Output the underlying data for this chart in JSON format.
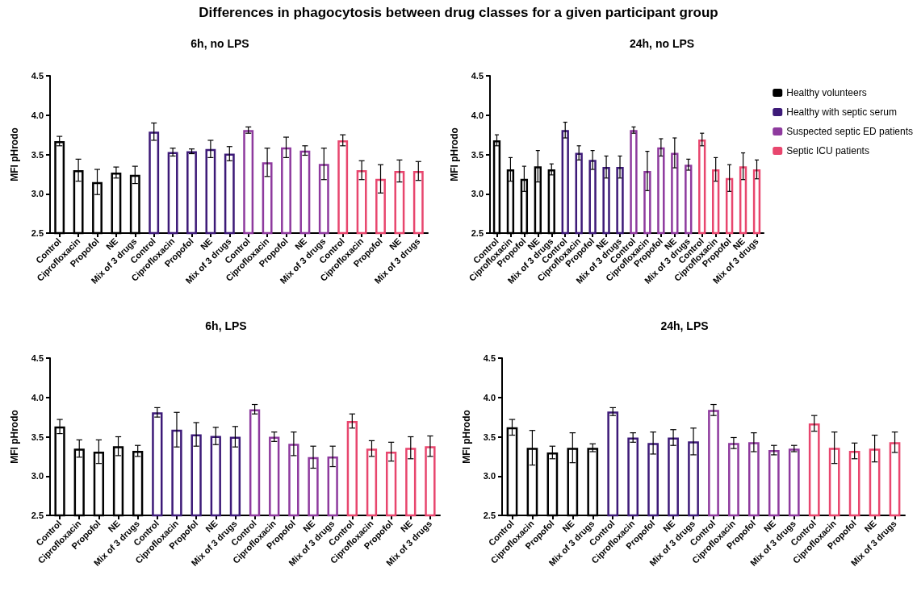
{
  "chart_data": [
    {
      "type": "bar",
      "title": "Differences in phagocytosis between drug classes for a given participant group",
      "subtitle": "6h, no LPS",
      "ylabel": "MFI pHrodo",
      "legend": false,
      "grid": false,
      "categories": [
        "Control",
        "Ciprofloxacin",
        "Propofol",
        "NE",
        "Mix of 3 drugs",
        "Control",
        "Ciprofloxacin",
        "Propofol",
        "NE",
        "Mix of 3 drugs",
        "Control",
        "Ciprofloxacin",
        "Propofol",
        "NE",
        "Mix of 3 drugs",
        "Control",
        "Ciprofloxacin",
        "Propofol",
        "NE",
        "Mix of 3 drugs"
      ],
      "ylim": [
        2.5,
        4.5
      ],
      "yticks": [
        {
          "value": 2.5,
          "label": "2.5"
        },
        {
          "value": 3,
          "label": "3.0"
        },
        {
          "value": 3.5,
          "label": "3.5"
        },
        {
          "value": 4,
          "label": "4.0"
        },
        {
          "value": 4.5,
          "label": "4.5"
        }
      ],
      "series": [
        {
          "color": "#000000",
          "values": [
            3.67,
            3.3,
            3.15,
            3.27,
            3.24,
            null,
            null,
            null,
            null,
            null,
            null,
            null,
            null,
            null,
            null,
            null,
            null,
            null,
            null,
            null
          ],
          "errors": [
            0.06,
            0.14,
            0.16,
            0.07,
            0.11,
            null,
            null,
            null,
            null,
            null,
            null,
            null,
            null,
            null,
            null,
            null,
            null,
            null,
            null,
            null
          ]
        },
        {
          "color": "#3d1a78",
          "values": [
            null,
            null,
            null,
            null,
            null,
            3.79,
            3.53,
            3.54,
            3.57,
            3.51,
            null,
            null,
            null,
            null,
            null,
            null,
            null,
            null,
            null,
            null
          ],
          "errors": [
            null,
            null,
            null,
            null,
            null,
            0.11,
            0.05,
            0.03,
            0.11,
            0.09,
            null,
            null,
            null,
            null,
            null,
            null,
            null,
            null,
            null,
            null
          ]
        },
        {
          "color": "#8e3a9e",
          "values": [
            null,
            null,
            null,
            null,
            null,
            null,
            null,
            null,
            null,
            null,
            3.81,
            3.4,
            3.59,
            3.55,
            3.38,
            null,
            null,
            null,
            null,
            null
          ],
          "errors": [
            null,
            null,
            null,
            null,
            null,
            null,
            null,
            null,
            null,
            null,
            0.04,
            0.18,
            0.13,
            0.06,
            0.2,
            null,
            null,
            null,
            null,
            null
          ]
        },
        {
          "color": "#e8466e",
          "values": [
            null,
            null,
            null,
            null,
            null,
            null,
            null,
            null,
            null,
            null,
            null,
            null,
            null,
            null,
            null,
            3.68,
            3.3,
            3.19,
            3.29,
            3.29
          ],
          "errors": [
            null,
            null,
            null,
            null,
            null,
            null,
            null,
            null,
            null,
            null,
            null,
            null,
            null,
            null,
            null,
            0.07,
            0.12,
            0.18,
            0.14,
            0.12
          ]
        }
      ]
    },
    {
      "type": "bar",
      "title": "24h, no LPS",
      "ylabel": "MFI pHrodo",
      "legend": "right",
      "grid": false,
      "categories": [
        "Control",
        "Ciprofloxacin",
        "Propofol",
        "NE",
        "Mix of 3 drugs",
        "Control",
        "Ciprofloxacin",
        "Propofol",
        "NE",
        "Mix of 3 drugs",
        "Control",
        "Ciprofloxacin",
        "Propofol",
        "NE",
        "Mix of 3 drugs",
        "Control",
        "Ciprofloxacin",
        "Propofol",
        "NE",
        "Mix of 3 drugs"
      ],
      "ylim": [
        2.5,
        4.5
      ],
      "yticks": [
        {
          "value": 2.5,
          "label": "2.5"
        },
        {
          "value": 3,
          "label": "3.0"
        },
        {
          "value": 3.5,
          "label": "3.5"
        },
        {
          "value": 4,
          "label": "4.0"
        },
        {
          "value": 4.5,
          "label": "4.5"
        }
      ],
      "series": [
        {
          "name": "Healthy volunteers",
          "color": "#000000",
          "values": [
            3.68,
            3.31,
            3.19,
            3.35,
            3.31,
            null,
            null,
            null,
            null,
            null,
            null,
            null,
            null,
            null,
            null,
            null,
            null,
            null,
            null,
            null
          ],
          "errors": [
            0.07,
            0.15,
            0.16,
            0.2,
            0.07,
            null,
            null,
            null,
            null,
            null,
            null,
            null,
            null,
            null,
            null,
            null,
            null,
            null,
            null,
            null
          ]
        },
        {
          "name": "Healthy with septic serum",
          "color": "#3d1a78",
          "values": [
            null,
            null,
            null,
            null,
            null,
            3.81,
            3.52,
            3.43,
            3.34,
            3.34,
            null,
            null,
            null,
            null,
            null,
            null,
            null,
            null,
            null,
            null
          ],
          "errors": [
            null,
            null,
            null,
            null,
            null,
            0.1,
            0.09,
            0.12,
            0.14,
            0.14,
            null,
            null,
            null,
            null,
            null,
            null,
            null,
            null,
            null,
            null
          ]
        },
        {
          "name": "Suspected septic ED patients",
          "color": "#8e3a9e",
          "values": [
            null,
            null,
            null,
            null,
            null,
            null,
            null,
            null,
            null,
            null,
            3.81,
            3.29,
            3.59,
            3.52,
            3.37,
            null,
            null,
            null,
            null,
            null
          ],
          "errors": [
            null,
            null,
            null,
            null,
            null,
            null,
            null,
            null,
            null,
            null,
            0.04,
            0.25,
            0.11,
            0.19,
            0.07,
            null,
            null,
            null,
            null,
            null
          ]
        },
        {
          "name": "Septic ICU patients",
          "color": "#e8466e",
          "values": [
            null,
            null,
            null,
            null,
            null,
            null,
            null,
            null,
            null,
            null,
            null,
            null,
            null,
            null,
            null,
            3.69,
            3.31,
            3.2,
            3.35,
            3.31
          ],
          "errors": [
            null,
            null,
            null,
            null,
            null,
            null,
            null,
            null,
            null,
            null,
            null,
            null,
            null,
            null,
            null,
            0.08,
            0.15,
            0.17,
            0.17,
            0.12
          ]
        }
      ]
    },
    {
      "type": "bar",
      "title": "6h, LPS",
      "ylabel": "MFI pHrodo",
      "legend": false,
      "grid": false,
      "categories": [
        "Control",
        "Ciprofloxacin",
        "Propofol",
        "NE",
        "Mix of 3 drugs",
        "Control",
        "Ciprofloxacin",
        "Propofol",
        "NE",
        "Mix of 3 drugs",
        "Control",
        "Ciprofloxacin",
        "Propofol",
        "NE",
        "Mix of 3 drugs",
        "Control",
        "Ciprofloxacin",
        "Propofol",
        "NE",
        "Mix of 3 drugs"
      ],
      "ylim": [
        2.5,
        4.5
      ],
      "yticks": [
        {
          "value": 2.5,
          "label": "2.5"
        },
        {
          "value": 3,
          "label": "3.0"
        },
        {
          "value": 3.5,
          "label": "3.5"
        },
        {
          "value": 4,
          "label": "4.0"
        },
        {
          "value": 4.5,
          "label": "4.5"
        }
      ],
      "series": [
        {
          "color": "#000000",
          "values": [
            3.63,
            3.35,
            3.31,
            3.38,
            3.32,
            null,
            null,
            null,
            null,
            null,
            null,
            null,
            null,
            null,
            null,
            null,
            null,
            null,
            null,
            null
          ],
          "errors": [
            0.09,
            0.11,
            0.15,
            0.12,
            0.07,
            null,
            null,
            null,
            null,
            null,
            null,
            null,
            null,
            null,
            null,
            null,
            null,
            null,
            null,
            null
          ]
        },
        {
          "color": "#3d1a78",
          "values": [
            null,
            null,
            null,
            null,
            null,
            3.81,
            3.59,
            3.53,
            3.51,
            3.5,
            null,
            null,
            null,
            null,
            null,
            null,
            null,
            null,
            null,
            null
          ],
          "errors": [
            null,
            null,
            null,
            null,
            null,
            0.06,
            0.22,
            0.15,
            0.11,
            0.13,
            null,
            null,
            null,
            null,
            null,
            null,
            null,
            null,
            null,
            null
          ]
        },
        {
          "color": "#8e3a9e",
          "values": [
            null,
            null,
            null,
            null,
            null,
            null,
            null,
            null,
            null,
            null,
            3.85,
            3.5,
            3.41,
            3.24,
            3.25,
            null,
            null,
            null,
            null,
            null
          ],
          "errors": [
            null,
            null,
            null,
            null,
            null,
            null,
            null,
            null,
            null,
            null,
            0.06,
            0.06,
            0.15,
            0.14,
            0.13,
            null,
            null,
            null,
            null,
            null
          ]
        },
        {
          "color": "#e8466e",
          "values": [
            null,
            null,
            null,
            null,
            null,
            null,
            null,
            null,
            null,
            null,
            null,
            null,
            null,
            null,
            null,
            3.7,
            3.35,
            3.31,
            3.36,
            3.38
          ],
          "errors": [
            null,
            null,
            null,
            null,
            null,
            null,
            null,
            null,
            null,
            null,
            null,
            null,
            null,
            null,
            null,
            0.09,
            0.1,
            0.12,
            0.14,
            0.13
          ]
        }
      ]
    },
    {
      "type": "bar",
      "title": "24h, LPS",
      "ylabel": "MFI pHrodo",
      "legend": false,
      "grid": false,
      "categories": [
        "Control",
        "Ciprofloxacin",
        "Propofol",
        "NE",
        "Mix of 3 drugs",
        "Control",
        "Ciprofloxacin",
        "Propofol",
        "NE",
        "Mix of 3 drugs",
        "Control",
        "Ciprofloxacin",
        "Propofol",
        "NE",
        "Mix of 3 drugs",
        "Control",
        "Ciprofloxacin",
        "Propofol",
        "NE",
        "Mix of 3 drugs"
      ],
      "ylim": [
        2.5,
        4.5
      ],
      "yticks": [
        {
          "value": 2.5,
          "label": "2.5"
        },
        {
          "value": 3,
          "label": "3.0"
        },
        {
          "value": 3.5,
          "label": "3.5"
        },
        {
          "value": 4,
          "label": "4.0"
        },
        {
          "value": 4.5,
          "label": "4.5"
        }
      ],
      "series": [
        {
          "color": "#000000",
          "values": [
            3.62,
            3.36,
            3.3,
            3.36,
            3.36,
            null,
            null,
            null,
            null,
            null,
            null,
            null,
            null,
            null,
            null,
            null,
            null,
            null,
            null,
            null
          ],
          "errors": [
            0.1,
            0.22,
            0.08,
            0.19,
            0.05,
            null,
            null,
            null,
            null,
            null,
            null,
            null,
            null,
            null,
            null,
            null,
            null,
            null,
            null,
            null
          ]
        },
        {
          "color": "#3d1a78",
          "values": [
            null,
            null,
            null,
            null,
            null,
            3.82,
            3.49,
            3.42,
            3.49,
            3.44,
            null,
            null,
            null,
            null,
            null,
            null,
            null,
            null,
            null,
            null
          ],
          "errors": [
            null,
            null,
            null,
            null,
            null,
            0.05,
            0.06,
            0.14,
            0.1,
            0.17,
            null,
            null,
            null,
            null,
            null,
            null,
            null,
            null,
            null,
            null
          ]
        },
        {
          "color": "#8e3a9e",
          "values": [
            null,
            null,
            null,
            null,
            null,
            null,
            null,
            null,
            null,
            null,
            3.84,
            3.42,
            3.43,
            3.33,
            3.35,
            null,
            null,
            null,
            null,
            null
          ],
          "errors": [
            null,
            null,
            null,
            null,
            null,
            null,
            null,
            null,
            null,
            null,
            0.07,
            0.07,
            0.12,
            0.06,
            0.04,
            null,
            null,
            null,
            null,
            null
          ]
        },
        {
          "color": "#e8466e",
          "values": [
            null,
            null,
            null,
            null,
            null,
            null,
            null,
            null,
            null,
            null,
            null,
            null,
            null,
            null,
            null,
            3.67,
            3.36,
            3.32,
            3.35,
            3.43
          ],
          "errors": [
            null,
            null,
            null,
            null,
            null,
            null,
            null,
            null,
            null,
            null,
            null,
            null,
            null,
            null,
            null,
            0.1,
            0.2,
            0.1,
            0.17,
            0.13
          ]
        }
      ]
    }
  ]
}
